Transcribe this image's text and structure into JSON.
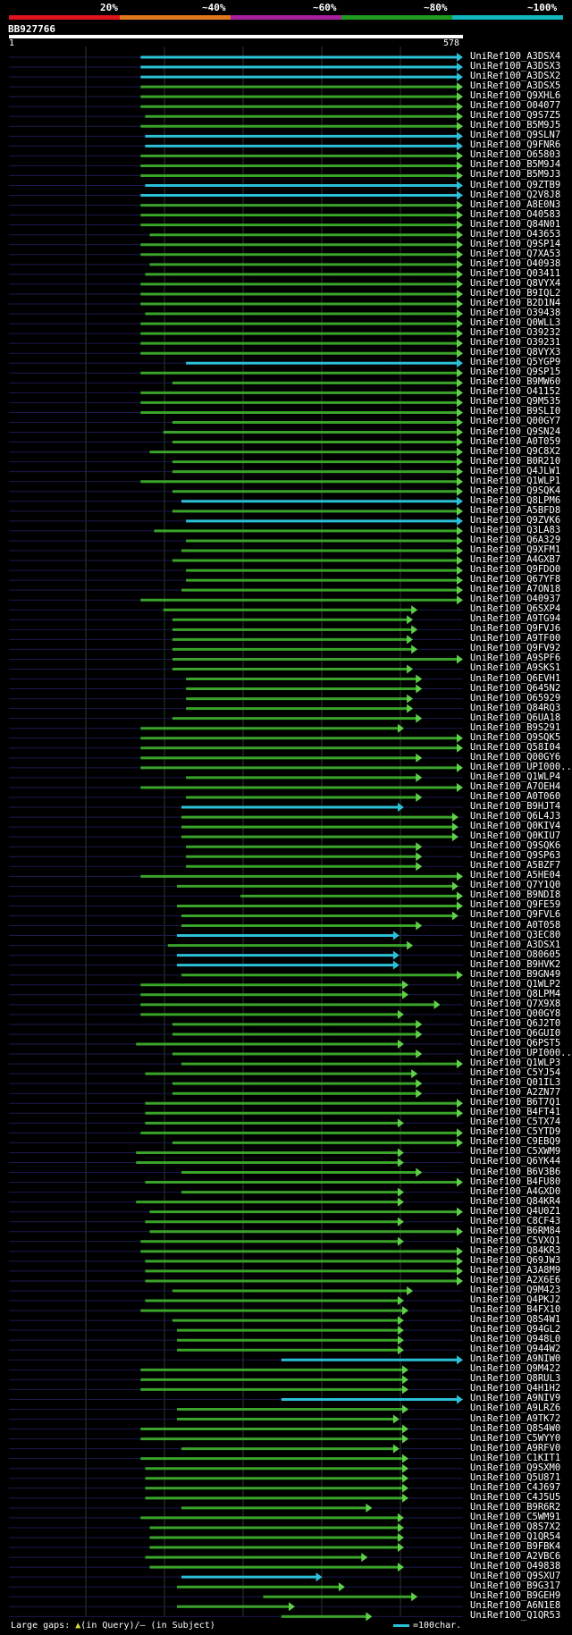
{
  "legend": {
    "labels": [
      "20%",
      "~40%",
      "~60%",
      "~80%",
      "~100%"
    ],
    "colors": [
      "#e0141e",
      "#e0781e",
      "#a8209e",
      "#1e9a1e",
      "#12b8c0"
    ]
  },
  "query": {
    "id": "BB927766",
    "start": "1",
    "end": "578"
  },
  "footer": {
    "gap_text_1": "Large gaps: ",
    "gap_symbol_q": "▲",
    "gap_text_2": "(in Query)/— (in Subject)"
  },
  "scale": {
    "label": "=100char."
  },
  "hit_colors": {
    "high": "#2bc0d8",
    "mid": "#1e9a1e",
    "line": "#3aa32a"
  },
  "hits": [
    {
      "name": "UniRef100_A3DSX4",
      "s": 0.29,
      "e": 1.0,
      "c": "b"
    },
    {
      "name": "UniRef100_A3DSX3",
      "s": 0.29,
      "e": 1.0,
      "c": "b"
    },
    {
      "name": "UniRef100_A3DSX2",
      "s": 0.29,
      "e": 1.0,
      "c": "b"
    },
    {
      "name": "UniRef100_A3DSX5",
      "s": 0.29,
      "e": 1.0,
      "c": "g"
    },
    {
      "name": "UniRef100_Q9XHL6",
      "s": 0.29,
      "e": 1.0,
      "c": "g"
    },
    {
      "name": "UniRef100_O04077",
      "s": 0.29,
      "e": 1.0,
      "c": "g"
    },
    {
      "name": "UniRef100_Q9S7Z5",
      "s": 0.3,
      "e": 1.0,
      "c": "g"
    },
    {
      "name": "UniRef100_B5M9J5",
      "s": 0.29,
      "e": 1.0,
      "c": "g"
    },
    {
      "name": "UniRef100_Q9SLN7",
      "s": 0.3,
      "e": 1.0,
      "c": "b"
    },
    {
      "name": "UniRef100_Q9FNR6",
      "s": 0.3,
      "e": 1.0,
      "c": "b"
    },
    {
      "name": "UniRef100_O65803",
      "s": 0.29,
      "e": 1.0,
      "c": "g"
    },
    {
      "name": "UniRef100_B5M9J4",
      "s": 0.29,
      "e": 1.0,
      "c": "g"
    },
    {
      "name": "UniRef100_B5M9J3",
      "s": 0.29,
      "e": 1.0,
      "c": "g"
    },
    {
      "name": "UniRef100_Q9ZTB9",
      "s": 0.3,
      "e": 1.0,
      "c": "b"
    },
    {
      "name": "UniRef100_Q2V8J8",
      "s": 0.29,
      "e": 1.0,
      "c": "b"
    },
    {
      "name": "UniRef100_A8E0N3",
      "s": 0.29,
      "e": 1.0,
      "c": "g"
    },
    {
      "name": "UniRef100_O40583",
      "s": 0.29,
      "e": 1.0,
      "c": "g"
    },
    {
      "name": "UniRef100_Q84N01",
      "s": 0.29,
      "e": 1.0,
      "c": "g"
    },
    {
      "name": "UniRef100_O43653",
      "s": 0.31,
      "e": 1.0,
      "c": "g"
    },
    {
      "name": "UniRef100_Q9SP14",
      "s": 0.29,
      "e": 1.0,
      "c": "g"
    },
    {
      "name": "UniRef100_Q7XA53",
      "s": 0.29,
      "e": 1.0,
      "c": "g"
    },
    {
      "name": "UniRef100_O40938",
      "s": 0.31,
      "e": 1.0,
      "c": "g"
    },
    {
      "name": "UniRef100_Q03411",
      "s": 0.3,
      "e": 1.0,
      "c": "g"
    },
    {
      "name": "UniRef100_Q8VYX4",
      "s": 0.29,
      "e": 1.0,
      "c": "g"
    },
    {
      "name": "UniRef100_B9IQL2",
      "s": 0.29,
      "e": 1.0,
      "c": "g"
    },
    {
      "name": "UniRef100_B2D1N4",
      "s": 0.29,
      "e": 1.0,
      "c": "g"
    },
    {
      "name": "UniRef100_O39438",
      "s": 0.3,
      "e": 1.0,
      "c": "g"
    },
    {
      "name": "UniRef100_Q0WLL3",
      "s": 0.29,
      "e": 1.0,
      "c": "g"
    },
    {
      "name": "UniRef100_O39232",
      "s": 0.29,
      "e": 1.0,
      "c": "g"
    },
    {
      "name": "UniRef100_O39231",
      "s": 0.29,
      "e": 1.0,
      "c": "g"
    },
    {
      "name": "UniRef100_Q8VYX3",
      "s": 0.29,
      "e": 1.0,
      "c": "g"
    },
    {
      "name": "UniRef100_Q5YGP9",
      "s": 0.39,
      "e": 1.0,
      "c": "b"
    },
    {
      "name": "UniRef100_Q9SP15",
      "s": 0.29,
      "e": 1.0,
      "c": "g"
    },
    {
      "name": "UniRef100_B9MW60",
      "s": 0.36,
      "e": 1.0,
      "c": "g"
    },
    {
      "name": "UniRef100_O41152",
      "s": 0.29,
      "e": 1.0,
      "c": "g"
    },
    {
      "name": "UniRef100_Q9M535",
      "s": 0.29,
      "e": 1.0,
      "c": "g"
    },
    {
      "name": "UniRef100_B9SLI0",
      "s": 0.29,
      "e": 1.0,
      "c": "g"
    },
    {
      "name": "UniRef100_Q00GY7",
      "s": 0.36,
      "e": 1.0,
      "c": "g"
    },
    {
      "name": "UniRef100_Q9SN24",
      "s": 0.34,
      "e": 1.0,
      "c": "g"
    },
    {
      "name": "UniRef100_A0T059",
      "s": 0.36,
      "e": 1.0,
      "c": "g"
    },
    {
      "name": "UniRef100_Q9C8X2",
      "s": 0.31,
      "e": 1.0,
      "c": "g"
    },
    {
      "name": "UniRef100_B0R210",
      "s": 0.36,
      "e": 1.0,
      "c": "g"
    },
    {
      "name": "UniRef100_Q4JLW1",
      "s": 0.36,
      "e": 1.0,
      "c": "g"
    },
    {
      "name": "UniRef100_Q1WLP1",
      "s": 0.29,
      "e": 1.0,
      "c": "g"
    },
    {
      "name": "UniRef100_Q9SQK4",
      "s": 0.36,
      "e": 1.0,
      "c": "g"
    },
    {
      "name": "UniRef100_Q8LPM6",
      "s": 0.38,
      "e": 1.0,
      "c": "b"
    },
    {
      "name": "UniRef100_A5BFD8",
      "s": 0.36,
      "e": 1.0,
      "c": "g"
    },
    {
      "name": "UniRef100_Q9ZVK6",
      "s": 0.39,
      "e": 1.0,
      "c": "b"
    },
    {
      "name": "UniRef100_Q3LA83",
      "s": 0.32,
      "e": 1.0,
      "c": "g"
    },
    {
      "name": "UniRef100_Q6A329",
      "s": 0.39,
      "e": 1.0,
      "c": "g"
    },
    {
      "name": "UniRef100_Q9XFM1",
      "s": 0.38,
      "e": 1.0,
      "c": "g"
    },
    {
      "name": "UniRef100_A4GXB7",
      "s": 0.36,
      "e": 1.0,
      "c": "g"
    },
    {
      "name": "UniRef100_Q9FDO0",
      "s": 0.39,
      "e": 1.0,
      "c": "g"
    },
    {
      "name": "UniRef100_Q67YF8",
      "s": 0.39,
      "e": 1.0,
      "c": "g"
    },
    {
      "name": "UniRef100_A7ON18",
      "s": 0.38,
      "e": 1.0,
      "c": "g"
    },
    {
      "name": "UniRef100_O40937",
      "s": 0.29,
      "e": 1.0,
      "c": "g"
    },
    {
      "name": "UniRef100_Q6SXP4",
      "s": 0.34,
      "e": 0.9,
      "c": "g"
    },
    {
      "name": "UniRef100_A9TG94",
      "s": 0.36,
      "e": 0.89,
      "c": "g"
    },
    {
      "name": "UniRef100_Q9FVJ6",
      "s": 0.36,
      "e": 0.9,
      "c": "g"
    },
    {
      "name": "UniRef100_A9TF00",
      "s": 0.36,
      "e": 0.89,
      "c": "g"
    },
    {
      "name": "UniRef100_Q9FV92",
      "s": 0.36,
      "e": 0.9,
      "c": "g"
    },
    {
      "name": "UniRef100_A9SPF6",
      "s": 0.36,
      "e": 1.0,
      "c": "g"
    },
    {
      "name": "UniRef100_A9SKS1",
      "s": 0.36,
      "e": 0.89,
      "c": "g"
    },
    {
      "name": "UniRef100_Q6EVH1",
      "s": 0.39,
      "e": 0.91,
      "c": "g"
    },
    {
      "name": "UniRef100_Q645N2",
      "s": 0.39,
      "e": 0.91,
      "c": "g"
    },
    {
      "name": "UniRef100_O65929",
      "s": 0.39,
      "e": 0.89,
      "c": "g"
    },
    {
      "name": "UniRef100_Q84RQ3",
      "s": 0.39,
      "e": 0.89,
      "c": "g"
    },
    {
      "name": "UniRef100_Q6UA18",
      "s": 0.36,
      "e": 0.91,
      "c": "g"
    },
    {
      "name": "UniRef100_B9S291",
      "s": 0.29,
      "e": 0.87,
      "c": "g"
    },
    {
      "name": "UniRef100_Q9SQK5",
      "s": 0.29,
      "e": 1.0,
      "c": "g"
    },
    {
      "name": "UniRef100_Q58I04",
      "s": 0.29,
      "e": 1.0,
      "c": "g"
    },
    {
      "name": "UniRef100_Q00GY6",
      "s": 0.29,
      "e": 0.91,
      "c": "g"
    },
    {
      "name": "UniRef100_UPI000..",
      "s": 0.29,
      "e": 1.0,
      "c": "g"
    },
    {
      "name": "UniRef100_Q1WLP4",
      "s": 0.39,
      "e": 0.91,
      "c": "g"
    },
    {
      "name": "UniRef100_A7OEH4",
      "s": 0.29,
      "e": 1.0,
      "c": "g"
    },
    {
      "name": "UniRef100_A0T060",
      "s": 0.39,
      "e": 0.91,
      "c": "g"
    },
    {
      "name": "UniRef100_B9HJT4",
      "s": 0.38,
      "e": 0.87,
      "c": "b"
    },
    {
      "name": "UniRef100_Q6L4J3",
      "s": 0.38,
      "e": 0.99,
      "c": "g"
    },
    {
      "name": "UniRef100_Q0KIV4",
      "s": 0.38,
      "e": 0.99,
      "c": "g"
    },
    {
      "name": "UniRef100_Q0KIU7",
      "s": 0.38,
      "e": 0.99,
      "c": "g"
    },
    {
      "name": "UniRef100_Q9SQK6",
      "s": 0.39,
      "e": 0.91,
      "c": "g"
    },
    {
      "name": "UniRef100_Q9SP63",
      "s": 0.39,
      "e": 0.91,
      "c": "g"
    },
    {
      "name": "UniRef100_A5BZF7",
      "s": 0.39,
      "e": 0.91,
      "c": "g"
    },
    {
      "name": "UniRef100_A5HE04",
      "s": 0.29,
      "e": 1.0,
      "c": "g"
    },
    {
      "name": "UniRef100_Q7Y1Q0",
      "s": 0.37,
      "e": 0.99,
      "c": "g"
    },
    {
      "name": "UniRef100_B9NDI8",
      "s": 0.51,
      "e": 1.0,
      "c": "g"
    },
    {
      "name": "UniRef100_Q9FE59",
      "s": 0.37,
      "e": 1.0,
      "c": "g"
    },
    {
      "name": "UniRef100_Q9FVL6",
      "s": 0.38,
      "e": 0.99,
      "c": "g"
    },
    {
      "name": "UniRef100_A0T058",
      "s": 0.38,
      "e": 0.91,
      "c": "g"
    },
    {
      "name": "UniRef100_Q3EC80",
      "s": 0.37,
      "e": 0.86,
      "c": "b"
    },
    {
      "name": "UniRef100_A3DSX1",
      "s": 0.35,
      "e": 0.89,
      "c": "g"
    },
    {
      "name": "UniRef100_O80605",
      "s": 0.37,
      "e": 0.86,
      "c": "b"
    },
    {
      "name": "UniRef100_B9HVK2",
      "s": 0.37,
      "e": 0.86,
      "c": "b"
    },
    {
      "name": "UniRef100_B9GN49",
      "s": 0.38,
      "e": 1.0,
      "c": "g"
    },
    {
      "name": "UniRef100_Q1WLP2",
      "s": 0.29,
      "e": 0.88,
      "c": "g"
    },
    {
      "name": "UniRef100_Q8LPM4",
      "s": 0.29,
      "e": 0.88,
      "c": "g"
    },
    {
      "name": "UniRef100_Q7X9X8",
      "s": 0.29,
      "e": 0.95,
      "c": "g"
    },
    {
      "name": "UniRef100_Q00GY8",
      "s": 0.29,
      "e": 0.87,
      "c": "g"
    },
    {
      "name": "UniRef100_Q6J2T0",
      "s": 0.36,
      "e": 0.91,
      "c": "g"
    },
    {
      "name": "UniRef100_Q6GUI0",
      "s": 0.36,
      "e": 0.91,
      "c": "g"
    },
    {
      "name": "UniRef100_Q6PST5",
      "s": 0.28,
      "e": 0.87,
      "c": "g"
    },
    {
      "name": "UniRef100_UPI000..",
      "s": 0.36,
      "e": 0.91,
      "c": "g"
    },
    {
      "name": "UniRef100_Q1WLP3",
      "s": 0.38,
      "e": 1.0,
      "c": "g"
    },
    {
      "name": "UniRef100_C5YJ54",
      "s": 0.3,
      "e": 0.9,
      "c": "g"
    },
    {
      "name": "UniRef100_Q01IL3",
      "s": 0.36,
      "e": 0.91,
      "c": "g"
    },
    {
      "name": "UniRef100_A2ZN77",
      "s": 0.36,
      "e": 0.91,
      "c": "g"
    },
    {
      "name": "UniRef100_B6T7Q1",
      "s": 0.3,
      "e": 1.0,
      "c": "g"
    },
    {
      "name": "UniRef100_B4FT41",
      "s": 0.3,
      "e": 1.0,
      "c": "g"
    },
    {
      "name": "UniRef100_C5TX74",
      "s": 0.3,
      "e": 0.87,
      "c": "g"
    },
    {
      "name": "UniRef100_C5YTD9",
      "s": 0.29,
      "e": 1.0,
      "c": "g"
    },
    {
      "name": "UniRef100_C9EBQ9",
      "s": 0.36,
      "e": 1.0,
      "c": "g"
    },
    {
      "name": "UniRef100_C5XWM9",
      "s": 0.28,
      "e": 0.87,
      "c": "g"
    },
    {
      "name": "UniRef100_Q6YK44",
      "s": 0.28,
      "e": 0.87,
      "c": "g"
    },
    {
      "name": "UniRef100_B6V3B6",
      "s": 0.38,
      "e": 0.91,
      "c": "g"
    },
    {
      "name": "UniRef100_B4FU80",
      "s": 0.3,
      "e": 1.0,
      "c": "g"
    },
    {
      "name": "UniRef100_A4GXD0",
      "s": 0.38,
      "e": 0.87,
      "c": "g"
    },
    {
      "name": "UniRef100_Q84KR4",
      "s": 0.28,
      "e": 0.87,
      "c": "g"
    },
    {
      "name": "UniRef100_Q4U0Z1",
      "s": 0.31,
      "e": 1.0,
      "c": "g"
    },
    {
      "name": "UniRef100_C8CF43",
      "s": 0.3,
      "e": 0.87,
      "c": "g"
    },
    {
      "name": "UniRef100_B6RM84",
      "s": 0.31,
      "e": 1.0,
      "c": "g"
    },
    {
      "name": "UniRef100_C5VXQ1",
      "s": 0.29,
      "e": 0.87,
      "c": "g"
    },
    {
      "name": "UniRef100_Q84KR3",
      "s": 0.29,
      "e": 1.0,
      "c": "g"
    },
    {
      "name": "UniRef100_Q69JW3",
      "s": 0.3,
      "e": 1.0,
      "c": "g"
    },
    {
      "name": "UniRef100_A3A8M9",
      "s": 0.3,
      "e": 1.0,
      "c": "g"
    },
    {
      "name": "UniRef100_A2X6E6",
      "s": 0.3,
      "e": 1.0,
      "c": "g"
    },
    {
      "name": "UniRef100_Q9M423",
      "s": 0.36,
      "e": 0.89,
      "c": "g"
    },
    {
      "name": "UniRef100_Q4PKJ2",
      "s": 0.3,
      "e": 0.87,
      "c": "g"
    },
    {
      "name": "UniRef100_B4FX10",
      "s": 0.29,
      "e": 0.88,
      "c": "g"
    },
    {
      "name": "UniRef100_Q8S4W1",
      "s": 0.36,
      "e": 0.87,
      "c": "g"
    },
    {
      "name": "UniRef100_Q94GL2",
      "s": 0.37,
      "e": 0.87,
      "c": "g"
    },
    {
      "name": "UniRef100_Q948L0",
      "s": 0.37,
      "e": 0.87,
      "c": "g"
    },
    {
      "name": "UniRef100_Q944W2",
      "s": 0.37,
      "e": 0.87,
      "c": "g"
    },
    {
      "name": "UniRef100_A9NIW0",
      "s": 0.6,
      "e": 1.0,
      "c": "b"
    },
    {
      "name": "UniRef100_Q9M422",
      "s": 0.29,
      "e": 0.88,
      "c": "g"
    },
    {
      "name": "UniRef100_Q8RUL3",
      "s": 0.29,
      "e": 0.88,
      "c": "g"
    },
    {
      "name": "UniRef100_Q4H1H2",
      "s": 0.29,
      "e": 0.88,
      "c": "g"
    },
    {
      "name": "UniRef100_A9NIV9",
      "s": 0.6,
      "e": 1.0,
      "c": "b"
    },
    {
      "name": "UniRef100_A9LRZ6",
      "s": 0.37,
      "e": 0.88,
      "c": "g"
    },
    {
      "name": "UniRef100_A9TK72",
      "s": 0.37,
      "e": 0.86,
      "c": "g"
    },
    {
      "name": "UniRef100_Q8S4W0",
      "s": 0.29,
      "e": 0.88,
      "c": "g"
    },
    {
      "name": "UniRef100_C5WYY0",
      "s": 0.29,
      "e": 0.88,
      "c": "g"
    },
    {
      "name": "UniRef100_A9RFV0",
      "s": 0.38,
      "e": 0.86,
      "c": "g"
    },
    {
      "name": "UniRef100_C1KIT1",
      "s": 0.29,
      "e": 0.88,
      "c": "g"
    },
    {
      "name": "UniRef100_Q9SXM0",
      "s": 0.3,
      "e": 0.88,
      "c": "g"
    },
    {
      "name": "UniRef100_Q5U871",
      "s": 0.3,
      "e": 0.88,
      "c": "g"
    },
    {
      "name": "UniRef100_C4J697",
      "s": 0.3,
      "e": 0.88,
      "c": "g"
    },
    {
      "name": "UniRef100_C4J5U5",
      "s": 0.3,
      "e": 0.88,
      "c": "g"
    },
    {
      "name": "UniRef100_B9R6R2",
      "s": 0.38,
      "e": 0.8,
      "c": "g"
    },
    {
      "name": "UniRef100_C5WM91",
      "s": 0.29,
      "e": 0.87,
      "c": "g"
    },
    {
      "name": "UniRef100_Q8S7X2",
      "s": 0.31,
      "e": 0.87,
      "c": "g"
    },
    {
      "name": "UniRef100_Q1QR54",
      "s": 0.31,
      "e": 0.87,
      "c": "g"
    },
    {
      "name": "UniRef100_B9FBK4",
      "s": 0.31,
      "e": 0.87,
      "c": "g"
    },
    {
      "name": "UniRef100_A2VBC6",
      "s": 0.3,
      "e": 0.79,
      "c": "g"
    },
    {
      "name": "UniRef100_O49838",
      "s": 0.31,
      "e": 0.87,
      "c": "g"
    },
    {
      "name": "UniRef100_Q9SXU7",
      "s": 0.38,
      "e": 0.69,
      "c": "b"
    },
    {
      "name": "UniRef100_B9G317",
      "s": 0.37,
      "e": 0.74,
      "c": "g"
    },
    {
      "name": "UniRef100_B9GEH9",
      "s": 0.56,
      "e": 0.9,
      "c": "g"
    },
    {
      "name": "UniRef100_A6N1E8",
      "s": 0.37,
      "e": 0.63,
      "c": "g"
    },
    {
      "name": "UniRef100_Q1QR53",
      "s": 0.6,
      "e": 0.8,
      "c": "g"
    }
  ]
}
